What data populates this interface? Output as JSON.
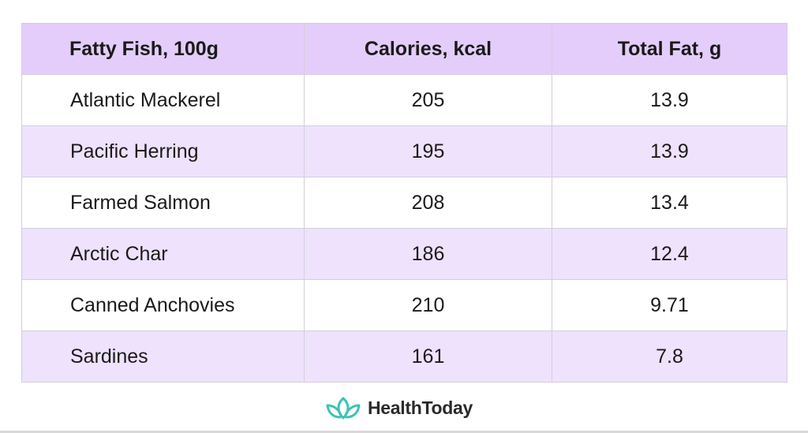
{
  "chart_data": {
    "type": "table",
    "columns": [
      "Fatty Fish, 100g",
      "Calories, kcal",
      "Total Fat, g"
    ],
    "rows": [
      {
        "fish": "Atlantic Mackerel",
        "calories": "205",
        "fat": "13.9"
      },
      {
        "fish": "Pacific Herring",
        "calories": "195",
        "fat": "13.9"
      },
      {
        "fish": "Farmed Salmon",
        "calories": "208",
        "fat": "13.4"
      },
      {
        "fish": "Arctic Char",
        "calories": "186",
        "fat": "12.4"
      },
      {
        "fish": "Canned Anchovies",
        "calories": "210",
        "fat": "9.71"
      },
      {
        "fish": "Sardines",
        "calories": "161",
        "fat": "7.8"
      }
    ]
  },
  "colors": {
    "header_bg": "#e4cdfa",
    "stripe_bg": "#eee2fc",
    "logo_accent": "#3cc3b4"
  },
  "brand": {
    "name": "HealthToday",
    "icon": "lotus-icon"
  }
}
